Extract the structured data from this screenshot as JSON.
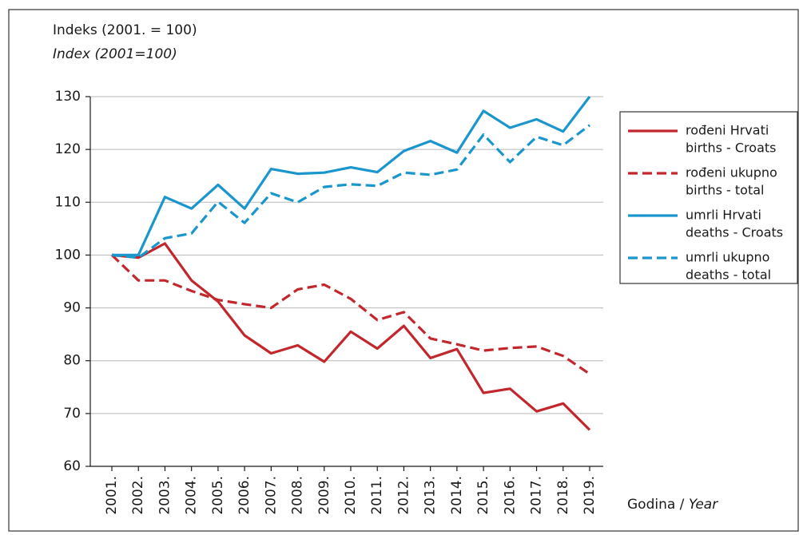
{
  "chart_data": {
    "type": "line",
    "title": "Indeks (2001. = 100)",
    "subtitle": "Index (2001=100)",
    "x_label": "Godina / ",
    "x_label_italic": "Year",
    "categories": [
      "2001.",
      "2002.",
      "2003.",
      "2004.",
      "2005.",
      "2006.",
      "2007.",
      "2008.",
      "2009.",
      "2010.",
      "2011.",
      "2012.",
      "2013.",
      "2014.",
      "2015.",
      "2016.",
      "2017.",
      "2018.",
      "2019."
    ],
    "ylim": [
      60,
      130
    ],
    "yticks": [
      60,
      70,
      80,
      90,
      100,
      110,
      120,
      130
    ],
    "grid": true,
    "legend": "right",
    "series": [
      {
        "name": [
          "rođeni Hrvati",
          "births - Croats"
        ],
        "color": "#c1272d",
        "dash": false,
        "values": [
          100,
          99.5,
          102.2,
          95.2,
          91.2,
          84.8,
          81.4,
          82.9,
          79.8,
          85.5,
          82.3,
          86.6,
          80.5,
          82.2,
          73.9,
          74.7,
          70.4,
          71.9,
          66.9
        ]
      },
      {
        "name": [
          "rođeni ukupno",
          "births - total"
        ],
        "color": "#c1272d",
        "dash": true,
        "values": [
          100,
          95.2,
          95.2,
          93.2,
          91.5,
          90.7,
          90.0,
          93.5,
          94.4,
          91.7,
          87.7,
          89.2,
          84.2,
          83.1,
          81.9,
          82.4,
          82.7,
          80.9,
          77.5
        ]
      },
      {
        "name": [
          "umrli Hrvati",
          "deaths - Croats"
        ],
        "color": "#1b96cd",
        "dash": false,
        "values": [
          100,
          100,
          111,
          108.8,
          113.3,
          108.8,
          116.3,
          115.4,
          115.6,
          116.6,
          115.7,
          119.7,
          121.6,
          119.4,
          127.3,
          124.1,
          125.7,
          123.4,
          130
        ]
      },
      {
        "name": [
          "umrli ukupno",
          "deaths - total"
        ],
        "color": "#1b96cd",
        "dash": true,
        "values": [
          100,
          99.5,
          103.2,
          104.1,
          110.1,
          106.1,
          111.7,
          110,
          112.9,
          113.4,
          113.1,
          115.6,
          115.2,
          116.2,
          122.8,
          117.6,
          122.4,
          120.8,
          124.6
        ]
      }
    ]
  }
}
